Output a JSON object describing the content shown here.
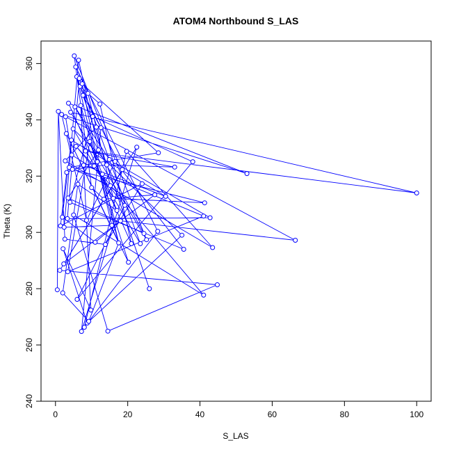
{
  "chart_data": {
    "type": "line",
    "title": "ATOM4 Northbound S_LAS",
    "xlabel": "S_LAS",
    "ylabel": "Theta (K)",
    "xlim": [
      -4,
      104
    ],
    "ylim": [
      240,
      368
    ],
    "xticks": [
      0,
      20,
      40,
      60,
      80,
      100
    ],
    "yticks": [
      240,
      260,
      280,
      300,
      320,
      340,
      360
    ],
    "color": "#0000ff",
    "marker": "open-circle",
    "grid": false,
    "legend": "none",
    "points": [
      {
        "x": 0.5,
        "y": 279.6
      },
      {
        "x": 0.8,
        "y": 343.0
      },
      {
        "x": 1.2,
        "y": 286.5
      },
      {
        "x": 1.4,
        "y": 302.3
      },
      {
        "x": 1.7,
        "y": 341.9
      },
      {
        "x": 1.9,
        "y": 305.4
      },
      {
        "x": 2.0,
        "y": 278.5
      },
      {
        "x": 2.1,
        "y": 294.2
      },
      {
        "x": 2.3,
        "y": 288.8
      },
      {
        "x": 2.4,
        "y": 301.8
      },
      {
        "x": 2.6,
        "y": 297.6
      },
      {
        "x": 2.7,
        "y": 325.4
      },
      {
        "x": 2.8,
        "y": 341.1
      },
      {
        "x": 3.0,
        "y": 335.1
      },
      {
        "x": 3.1,
        "y": 321.3
      },
      {
        "x": 3.3,
        "y": 304.9
      },
      {
        "x": 3.4,
        "y": 286.0
      },
      {
        "x": 3.5,
        "y": 312.2
      },
      {
        "x": 3.6,
        "y": 345.9
      },
      {
        "x": 3.8,
        "y": 323.1
      },
      {
        "x": 4.0,
        "y": 310.7
      },
      {
        "x": 4.2,
        "y": 342.7
      },
      {
        "x": 4.4,
        "y": 332.8
      },
      {
        "x": 4.5,
        "y": 327.5
      },
      {
        "x": 4.7,
        "y": 322.4
      },
      {
        "x": 4.9,
        "y": 336.8
      },
      {
        "x": 5.0,
        "y": 306.2
      },
      {
        "x": 5.2,
        "y": 362.7
      },
      {
        "x": 5.4,
        "y": 344.6
      },
      {
        "x": 5.6,
        "y": 358.8
      },
      {
        "x": 5.7,
        "y": 330.6
      },
      {
        "x": 5.9,
        "y": 355.3
      },
      {
        "x": 6.0,
        "y": 276.2
      },
      {
        "x": 6.2,
        "y": 317.1
      },
      {
        "x": 6.4,
        "y": 361.2
      },
      {
        "x": 6.6,
        "y": 354.7
      },
      {
        "x": 6.8,
        "y": 351.9
      },
      {
        "x": 7.0,
        "y": 345.1
      },
      {
        "x": 7.2,
        "y": 264.8
      },
      {
        "x": 7.4,
        "y": 352.8
      },
      {
        "x": 7.6,
        "y": 348.7
      },
      {
        "x": 7.8,
        "y": 323.9
      },
      {
        "x": 8.0,
        "y": 266.3
      },
      {
        "x": 8.3,
        "y": 328.9
      },
      {
        "x": 8.6,
        "y": 304.3
      },
      {
        "x": 8.8,
        "y": 267.8
      },
      {
        "x": 9.0,
        "y": 349.4
      },
      {
        "x": 9.2,
        "y": 268.4
      },
      {
        "x": 9.5,
        "y": 332.3
      },
      {
        "x": 9.8,
        "y": 272.4
      },
      {
        "x": 10.0,
        "y": 315.9
      },
      {
        "x": 10.3,
        "y": 341.2
      },
      {
        "x": 10.7,
        "y": 323.6
      },
      {
        "x": 11.0,
        "y": 296.5
      },
      {
        "x": 11.3,
        "y": 337.4
      },
      {
        "x": 11.6,
        "y": 325.1
      },
      {
        "x": 11.9,
        "y": 329.3
      },
      {
        "x": 12.3,
        "y": 345.6
      },
      {
        "x": 12.6,
        "y": 337.2
      },
      {
        "x": 13.0,
        "y": 320.7
      },
      {
        "x": 13.4,
        "y": 311.8
      },
      {
        "x": 13.8,
        "y": 295.7
      },
      {
        "x": 14.2,
        "y": 324.0
      },
      {
        "x": 14.5,
        "y": 264.9
      },
      {
        "x": 14.9,
        "y": 325.9
      },
      {
        "x": 15.2,
        "y": 316.6
      },
      {
        "x": 15.6,
        "y": 302.5
      },
      {
        "x": 16.0,
        "y": 312.1
      },
      {
        "x": 16.5,
        "y": 325.2
      },
      {
        "x": 17.0,
        "y": 307.8
      },
      {
        "x": 17.5,
        "y": 296.3
      },
      {
        "x": 18.0,
        "y": 304.1
      },
      {
        "x": 18.5,
        "y": 322.3
      },
      {
        "x": 19.2,
        "y": 309.6
      },
      {
        "x": 19.7,
        "y": 328.8
      },
      {
        "x": 20.2,
        "y": 289.4
      },
      {
        "x": 21.0,
        "y": 296.0
      },
      {
        "x": 22.5,
        "y": 330.3
      },
      {
        "x": 23.5,
        "y": 296.0
      },
      {
        "x": 24.0,
        "y": 317.3
      },
      {
        "x": 24.5,
        "y": 299.6
      },
      {
        "x": 25.2,
        "y": 297.4
      },
      {
        "x": 26.0,
        "y": 280.0
      },
      {
        "x": 27.5,
        "y": 313.4
      },
      {
        "x": 28.3,
        "y": 300.4
      },
      {
        "x": 28.5,
        "y": 328.3
      },
      {
        "x": 30.5,
        "y": 312.8
      },
      {
        "x": 33.0,
        "y": 323.2
      },
      {
        "x": 35.0,
        "y": 299.0
      },
      {
        "x": 35.5,
        "y": 294.0
      },
      {
        "x": 38.0,
        "y": 325.1
      },
      {
        "x": 41.0,
        "y": 277.7
      },
      {
        "x": 41.3,
        "y": 310.5
      },
      {
        "x": 41.0,
        "y": 305.8
      },
      {
        "x": 42.8,
        "y": 305.2
      },
      {
        "x": 43.5,
        "y": 294.6
      },
      {
        "x": 44.8,
        "y": 281.4
      },
      {
        "x": 53.0,
        "y": 320.9
      },
      {
        "x": 66.4,
        "y": 297.2
      },
      {
        "x": 100.0,
        "y": 314.0
      }
    ],
    "path_order": [
      0,
      1,
      10,
      61,
      79,
      3,
      14,
      41,
      86,
      22,
      5,
      53,
      71,
      98,
      12,
      23,
      59,
      93,
      16,
      48,
      75,
      13,
      70,
      47,
      6,
      33,
      69,
      55,
      39,
      85,
      101,
      19,
      65,
      46,
      29,
      84,
      42,
      74,
      95,
      11,
      54,
      67,
      92,
      24,
      62,
      87,
      43,
      99,
      21,
      81,
      27,
      50,
      60,
      83,
      8,
      72,
      36,
      57,
      76,
      18,
      97,
      4,
      44,
      68,
      89,
      20,
      51,
      90,
      32,
      73,
      30,
      52,
      91,
      26,
      63,
      96,
      2,
      77,
      38,
      58,
      40,
      82,
      31,
      66,
      100,
      9,
      34,
      56,
      17,
      80,
      28,
      64,
      94,
      15,
      35,
      78,
      25,
      88,
      45,
      102,
      7,
      49,
      37,
      70,
      59
    ]
  }
}
